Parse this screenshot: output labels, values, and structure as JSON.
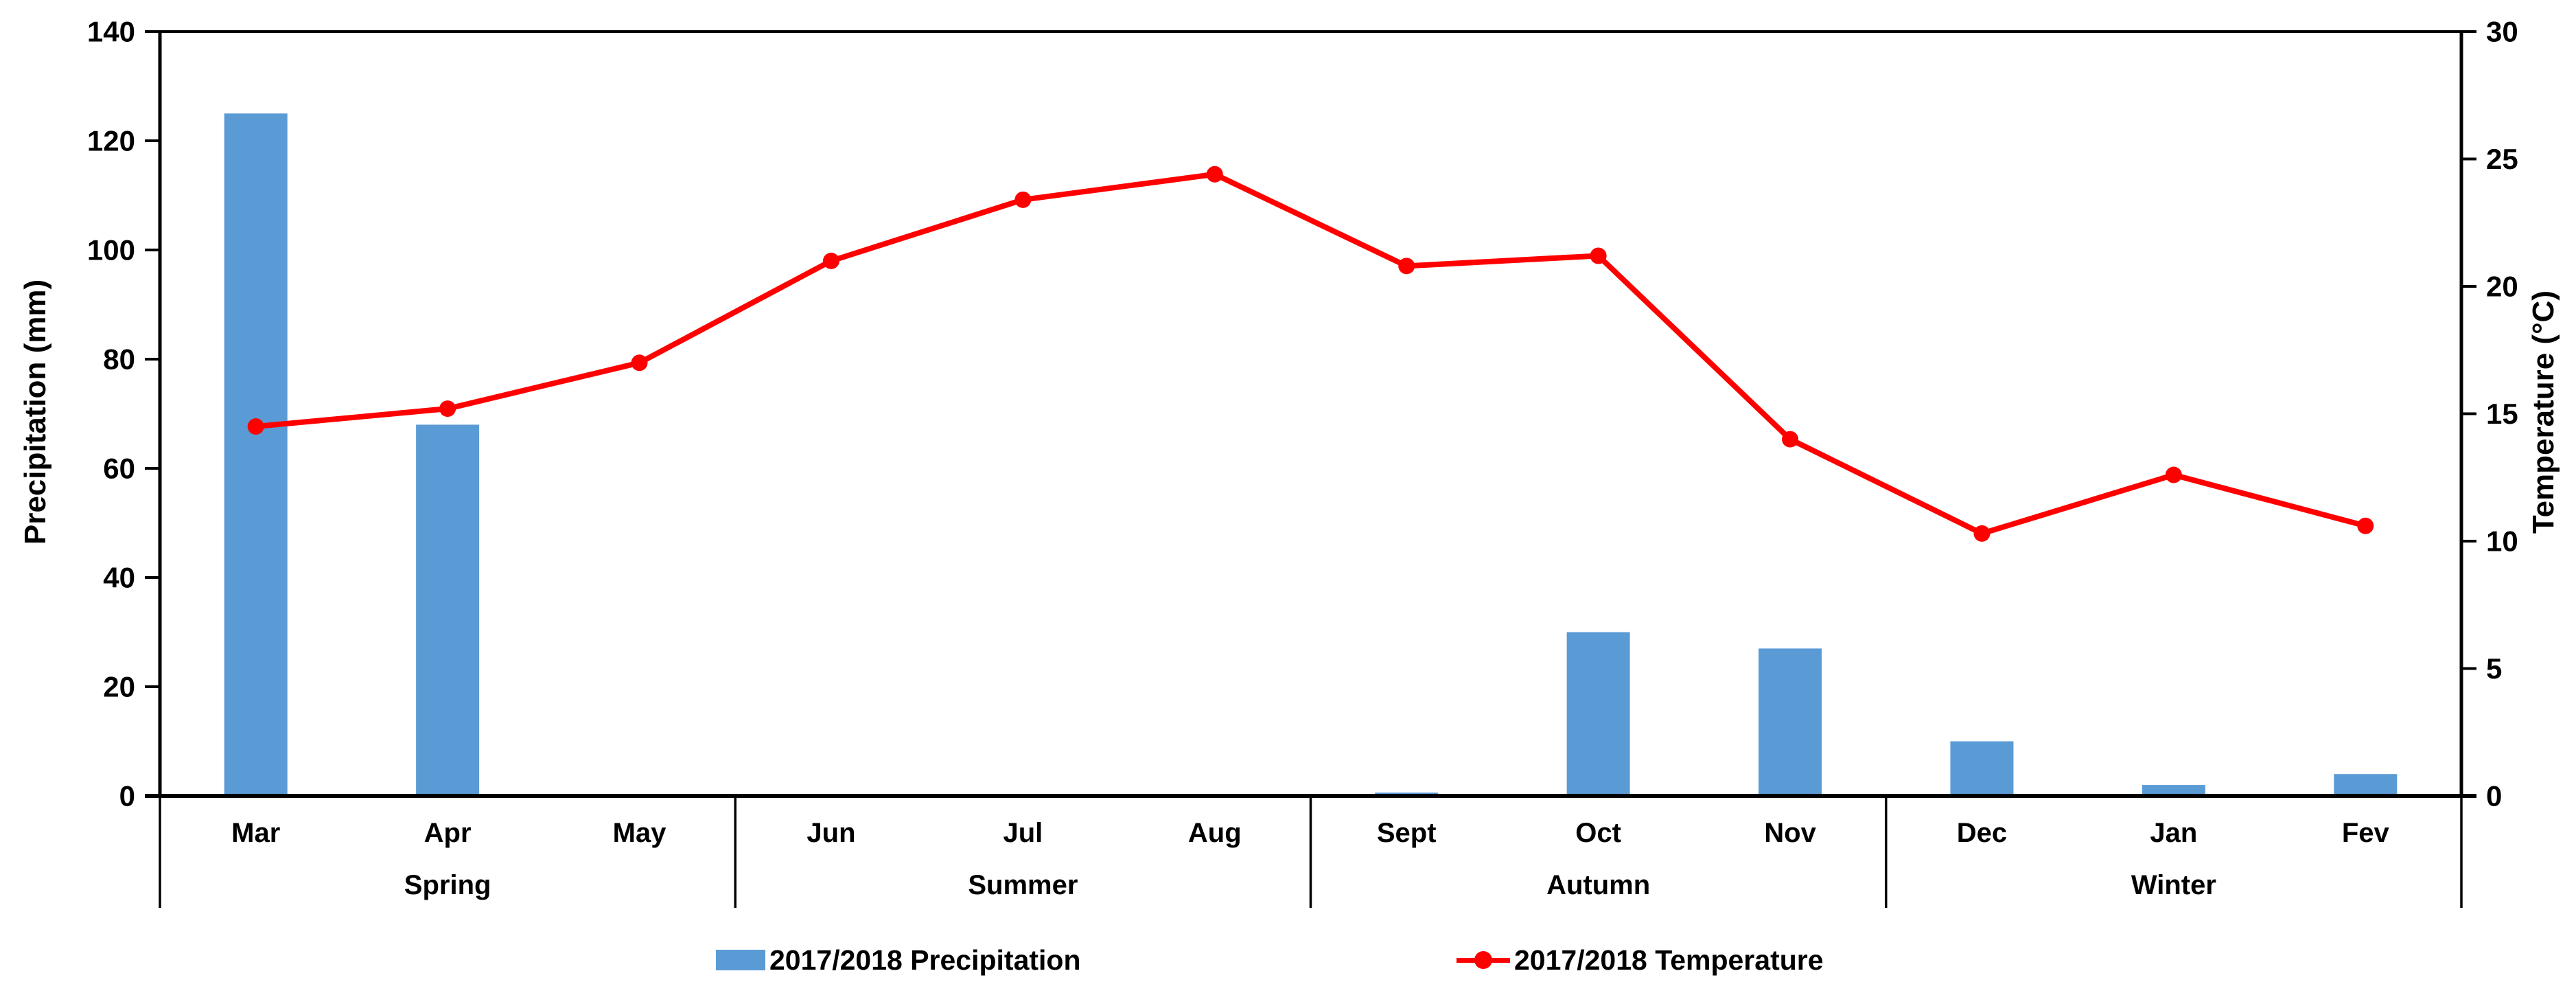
{
  "chart_data": {
    "type": "combo_bar_line",
    "title": "",
    "categories": [
      "Mar",
      "Apr",
      "May",
      "Jun",
      "Jul",
      "Aug",
      "Sept",
      "Oct",
      "Nov",
      "Dec",
      "Jan",
      "Fev"
    ],
    "season_groups": [
      {
        "label": "Spring",
        "months": [
          "Mar",
          "Apr",
          "May"
        ]
      },
      {
        "label": "Summer",
        "months": [
          "Jun",
          "Jul",
          "Aug"
        ]
      },
      {
        "label": "Autumn",
        "months": [
          "Sept",
          "Oct",
          "Nov"
        ]
      },
      {
        "label": "Winter",
        "months": [
          "Dec",
          "Jan",
          "Fev"
        ]
      }
    ],
    "series": [
      {
        "name": "2017/2018 Precipitation",
        "type": "bar",
        "axis": "left",
        "color": "#5B9BD5",
        "values": [
          125,
          68,
          0,
          0.3,
          0,
          0,
          0.6,
          30,
          27,
          10,
          2,
          4
        ]
      },
      {
        "name": "2017/2018 Temperature",
        "type": "line",
        "axis": "right",
        "color": "#FF0000",
        "values": [
          14.5,
          15.2,
          17.0,
          21.0,
          23.4,
          24.4,
          20.8,
          21.2,
          14.0,
          10.3,
          12.6,
          10.6
        ]
      }
    ],
    "left_axis": {
      "title": "Precipitation (mm)",
      "min": 0,
      "max": 140,
      "tick_step": 20,
      "ticks": [
        0,
        20,
        40,
        60,
        80,
        100,
        120,
        140
      ]
    },
    "right_axis": {
      "title": "Temperature (°C)",
      "min": 0,
      "max": 30,
      "tick_step": 5,
      "ticks": [
        0,
        5,
        10,
        15,
        20,
        25,
        30
      ]
    },
    "grid": false,
    "legend_position": "bottom",
    "axis_color": "#000000"
  }
}
